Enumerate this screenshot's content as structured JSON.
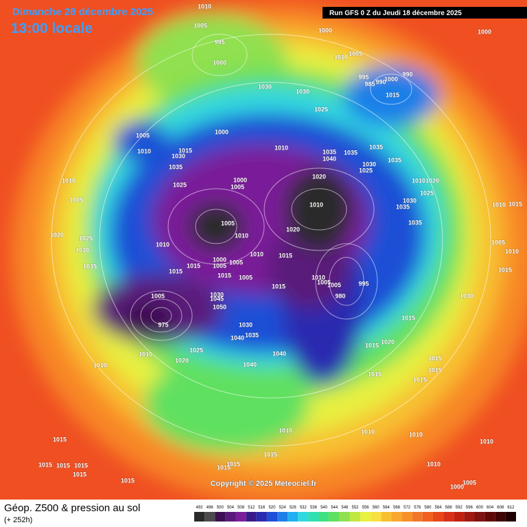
{
  "header": {
    "date": "Dimanche 28 décembre 2025",
    "time": "13:00 locale",
    "run": "Run GFS 0 Z du Jeudi 18 décembre 2025"
  },
  "copyright": "Copyright © 2025 Meteociel.fr",
  "footer": {
    "title": "Géop. Z500 & pression au sol",
    "subtitle": "(+ 252h)"
  },
  "legend": {
    "values": [
      492,
      496,
      500,
      504,
      508,
      512,
      516,
      520,
      524,
      528,
      532,
      536,
      540,
      544,
      548,
      552,
      556,
      560,
      564,
      568,
      572,
      576,
      580,
      584,
      588,
      592,
      596,
      600,
      604,
      608,
      612
    ],
    "colors": [
      "#2a2a2a",
      "#4b4b4b",
      "#3c1050",
      "#5a1a7a",
      "#7a1f99",
      "#3a1a8a",
      "#2b2bb0",
      "#1f4fd6",
      "#1f7fe8",
      "#20b0f0",
      "#30d8e0",
      "#30e0b0",
      "#40e080",
      "#60e060",
      "#90e050",
      "#c0e840",
      "#e8f040",
      "#f8e040",
      "#f8c030",
      "#f8a830",
      "#f89028",
      "#f07828",
      "#f06020",
      "#e84818",
      "#d83018",
      "#c02010",
      "#a01810",
      "#801010",
      "#600808",
      "#400404",
      "#200000"
    ]
  },
  "pressure_labels": [
    1010,
    1005,
    995,
    1000,
    1000,
    1005,
    1010,
    1000,
    995,
    1000,
    990,
    985,
    990,
    1015,
    1030,
    1030,
    1025,
    1000,
    1005,
    1010,
    1015,
    1030,
    1035,
    1025,
    1010,
    1035,
    1040,
    1035,
    1035,
    1030,
    1025,
    1035,
    1020,
    1000,
    1005,
    1010,
    1005,
    1010,
    1005,
    1020,
    1010,
    1020,
    1025,
    1030,
    1035,
    1010,
    1010,
    1015,
    1000,
    1005,
    1005,
    1015,
    1015,
    1015,
    1005,
    1015,
    1010,
    1005,
    1005,
    995,
    980,
    1030,
    1045,
    1050,
    1005,
    975,
    1030,
    1040,
    1035,
    1040,
    1040,
    1025,
    1020,
    1010,
    1010,
    1015,
    1015,
    1020,
    1015,
    1015,
    1015,
    1015,
    1030,
    1015,
    1010,
    1005,
    1010,
    1015,
    1035,
    1035,
    1030,
    1025,
    1010,
    1020,
    1010,
    1010,
    1010,
    1010,
    1010,
    1005,
    1000,
    1015,
    1015,
    1015,
    1015,
    1015,
    1015,
    1015,
    1015,
    1015
  ]
}
